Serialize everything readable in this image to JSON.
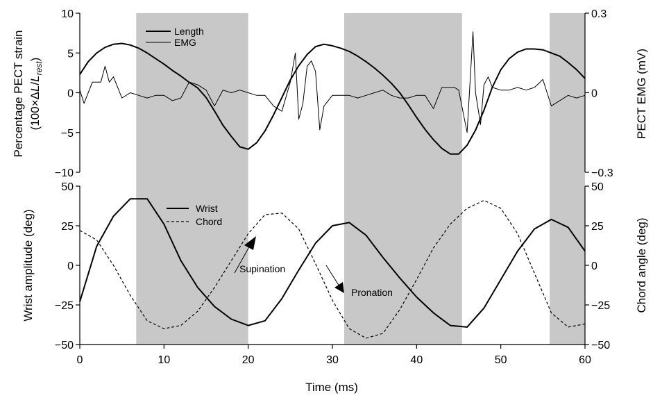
{
  "chart_data": [
    {
      "type": "line",
      "panel": "top",
      "ylabel_main": "Percentage PECT strain",
      "ylabel_sub_prefix": "(100×Δ",
      "ylabel_sub_L": "L",
      "ylabel_sub_slash": "/",
      "ylabel_sub_L2": "L",
      "ylabel_sub_rest": "rest",
      "ylabel_sub_close": ")",
      "y2label": "PECT EMG (mV)",
      "ylim": [
        -10,
        10
      ],
      "y2lim": [
        -0.3,
        0.3
      ],
      "yticks": [
        10,
        5,
        0,
        -5,
        -10
      ],
      "yticklabels": [
        "10",
        "5",
        "0",
        "−5",
        "−10"
      ],
      "y2ticks": [
        0.3,
        0,
        -0.3
      ],
      "y2ticklabels": [
        "0.3",
        "0",
        "−0.3"
      ],
      "xlim": [
        0,
        60
      ],
      "series": [
        {
          "name": "Length",
          "axis": "left",
          "x": [
            0,
            1,
            2,
            3,
            4,
            5,
            6,
            7,
            8,
            9,
            10,
            11,
            12,
            13,
            14,
            15,
            16,
            17,
            18,
            19,
            20,
            21,
            22,
            23,
            24,
            25,
            26,
            27,
            28,
            29,
            30,
            31,
            32,
            33,
            34,
            35,
            36,
            37,
            38,
            39,
            40,
            41,
            42,
            43,
            44,
            45,
            46,
            47,
            48,
            49,
            50,
            51,
            52,
            53,
            54,
            55,
            56,
            57,
            58,
            59,
            60
          ],
          "values": [
            2.3,
            3.9,
            5.0,
            5.7,
            6.1,
            6.2,
            6.0,
            5.6,
            5.0,
            4.3,
            3.6,
            2.8,
            2.1,
            1.3,
            0.6,
            -0.6,
            -2.3,
            -4.1,
            -5.5,
            -6.8,
            -7.1,
            -6.3,
            -4.8,
            -2.8,
            -0.6,
            1.6,
            3.4,
            4.8,
            5.8,
            6.1,
            5.9,
            5.6,
            5.2,
            4.6,
            3.9,
            3.1,
            2.2,
            1.2,
            0.0,
            -1.5,
            -3.1,
            -4.6,
            -5.9,
            -7.0,
            -7.7,
            -7.7,
            -6.6,
            -4.7,
            -2.2,
            0.7,
            2.9,
            4.3,
            5.1,
            5.5,
            5.5,
            5.4,
            5.0,
            4.6,
            3.8,
            2.9,
            1.8
          ]
        },
        {
          "name": "EMG",
          "axis": "right",
          "x": [
            0,
            0.5,
            1.5,
            2.5,
            3,
            3.5,
            4,
            5,
            6,
            7,
            8,
            9,
            10,
            11,
            12,
            13,
            14,
            15,
            16,
            17,
            18,
            19,
            20,
            21,
            22,
            23,
            24,
            25,
            25.6,
            26,
            26.5,
            27,
            27.5,
            28,
            28.5,
            29,
            30,
            31,
            32,
            33,
            34,
            35,
            36,
            37,
            38,
            39,
            40,
            41,
            42,
            43,
            43.8,
            44.5,
            45,
            46,
            46.7,
            47,
            47.6,
            48,
            48.5,
            49,
            50,
            51,
            52,
            53,
            54,
            55,
            56,
            57,
            58,
            59,
            60
          ],
          "values": [
            0.01,
            -0.04,
            0.04,
            0.04,
            0.1,
            0.04,
            0.06,
            -0.02,
            0.0,
            -0.01,
            -0.02,
            -0.01,
            -0.01,
            -0.03,
            -0.02,
            0.04,
            0.03,
            0.01,
            -0.05,
            0.01,
            0.0,
            0.01,
            0.0,
            -0.01,
            -0.01,
            -0.05,
            -0.07,
            0.04,
            0.15,
            -0.1,
            -0.04,
            0.1,
            0.12,
            0.08,
            -0.14,
            -0.05,
            -0.01,
            -0.01,
            -0.01,
            -0.02,
            -0.01,
            0.0,
            0.01,
            -0.01,
            -0.02,
            -0.02,
            -0.01,
            -0.01,
            -0.06,
            0.02,
            0.02,
            0.02,
            0.01,
            -0.15,
            0.23,
            0.0,
            -0.12,
            0.03,
            0.06,
            0.02,
            0.01,
            0.01,
            0.02,
            0.01,
            0.02,
            0.05,
            -0.05,
            -0.03,
            -0.01,
            -0.02,
            -0.01
          ]
        }
      ]
    },
    {
      "type": "line",
      "panel": "bottom",
      "xlabel": "Time (ms)",
      "ylabel": "Wrist amplitude (deg)",
      "y2label": "Chord angle (deg)",
      "xlim": [
        0,
        60
      ],
      "xticks": [
        0,
        10,
        20,
        30,
        40,
        50,
        60
      ],
      "xticklabels": [
        "0",
        "10",
        "20",
        "30",
        "40",
        "50",
        "60"
      ],
      "ylim": [
        -50,
        50
      ],
      "y2lim": [
        -50,
        50
      ],
      "yticks": [
        50,
        25,
        0,
        -25,
        -50
      ],
      "yticklabels": [
        "50",
        "25",
        "0",
        "−25",
        "−50"
      ],
      "y2ticks": [
        50,
        25,
        0,
        -25,
        -50
      ],
      "y2ticklabels": [
        "50",
        "25",
        "0",
        "−25",
        "−50"
      ],
      "series": [
        {
          "name": "Wrist",
          "style": "solid",
          "x": [
            0,
            2,
            4,
            6,
            8,
            10,
            12,
            14,
            16,
            18,
            20,
            22,
            24,
            26,
            28,
            30,
            32,
            34,
            36,
            38,
            40,
            42,
            44,
            46,
            48,
            50,
            52,
            54,
            56,
            58,
            60
          ],
          "values": [
            -23,
            12,
            31,
            42,
            42,
            26,
            3,
            -14,
            -26,
            -34,
            -38,
            -35,
            -21,
            -3,
            14,
            25,
            27,
            19,
            5,
            -8,
            -20,
            -30,
            -38,
            -39,
            -27,
            -9,
            9,
            23,
            29,
            24,
            9
          ]
        },
        {
          "name": "Chord",
          "style": "dashed",
          "x": [
            0,
            2,
            4,
            6,
            8,
            10,
            12,
            14,
            16,
            18,
            20,
            22,
            24,
            26,
            28,
            30,
            32,
            34,
            36,
            38,
            40,
            42,
            44,
            46,
            48,
            50,
            52,
            54,
            56,
            58,
            60
          ],
          "values": [
            22,
            16,
            0,
            -19,
            -35,
            -40,
            -38,
            -29,
            -14,
            3,
            20,
            32,
            33,
            23,
            1,
            -22,
            -40,
            -46,
            -43,
            -28,
            -9,
            11,
            26,
            36,
            41,
            36,
            20,
            -5,
            -30,
            -39,
            -37
          ]
        }
      ],
      "annotations": [
        {
          "text": "Supination"
        },
        {
          "text": "Pronation"
        }
      ]
    }
  ],
  "shaded_regions_ms": [
    [
      6.7,
      20.0
    ],
    [
      31.4,
      45.4
    ],
    [
      55.8,
      60
    ]
  ],
  "colors": {
    "shade": "#c8c8c8",
    "line": "#000000",
    "background": "#ffffff"
  }
}
